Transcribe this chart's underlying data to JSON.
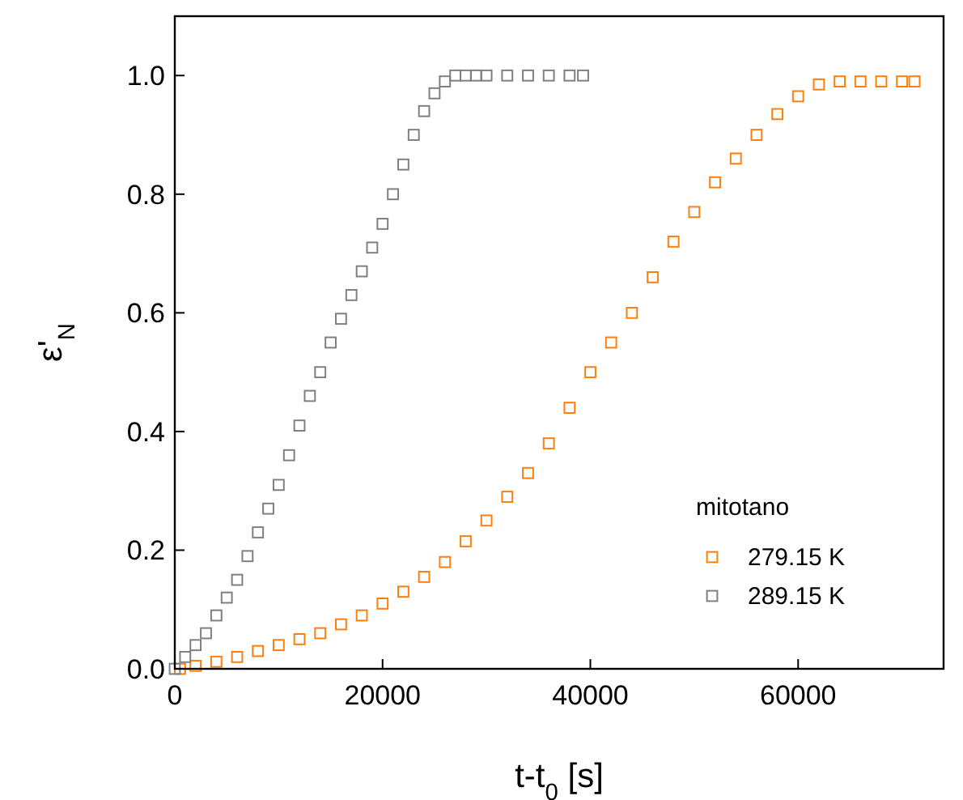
{
  "chart_data": {
    "type": "scatter",
    "xlabel": "t-t$_{0}$ [s]",
    "ylabel": "ε'$_{N}$",
    "legend_title": "mitotano",
    "legend": "bottom right",
    "marker": "square",
    "xlim": [
      0,
      74000
    ],
    "ylim": [
      0,
      1.1
    ],
    "xticks": [
      0,
      20000,
      40000,
      60000
    ],
    "yticks": [
      {
        "value": 0,
        "label": "0.0"
      },
      {
        "value": 0.2,
        "label": "0.2"
      },
      {
        "value": 0.4,
        "label": "0.4"
      },
      {
        "value": 0.6,
        "label": "0.6"
      },
      {
        "value": 0.8,
        "label": "0.8"
      },
      {
        "value": 1,
        "label": "1.0"
      }
    ],
    "series": [
      {
        "name": "279.15 K",
        "color": "#ff7f0e",
        "x": [
          500,
          2000,
          4000,
          6000,
          8000,
          10000,
          12000,
          14000,
          16000,
          18000,
          20000,
          22000,
          24000,
          26000,
          28000,
          30000,
          32000,
          34000,
          36000,
          38000,
          40000,
          42000,
          44000,
          46000,
          48000,
          50000,
          52000,
          54000,
          56000,
          58000,
          60000,
          62000,
          64000,
          66000,
          68000,
          70000,
          71200
        ],
        "values": [
          0,
          0.005,
          0.012,
          0.02,
          0.03,
          0.04,
          0.05,
          0.06,
          0.075,
          0.09,
          0.11,
          0.13,
          0.155,
          0.18,
          0.215,
          0.25,
          0.29,
          0.33,
          0.38,
          0.44,
          0.5,
          0.55,
          0.6,
          0.66,
          0.72,
          0.77,
          0.82,
          0.86,
          0.9,
          0.935,
          0.965,
          0.985,
          0.99,
          0.99,
          0.99,
          0.99,
          0.99
        ]
      },
      {
        "name": "289.15 K",
        "color": "#808080",
        "x": [
          0,
          1000,
          2000,
          3000,
          4000,
          5000,
          6000,
          7000,
          8000,
          9000,
          10000,
          11000,
          12000,
          13000,
          14000,
          15000,
          16000,
          17000,
          18000,
          19000,
          20000,
          21000,
          22000,
          23000,
          24000,
          25000,
          26000,
          27000,
          28000,
          29000,
          30000,
          32000,
          34000,
          36000,
          38000,
          39300
        ],
        "values": [
          0,
          0.02,
          0.04,
          0.06,
          0.09,
          0.12,
          0.15,
          0.19,
          0.23,
          0.27,
          0.31,
          0.36,
          0.41,
          0.46,
          0.5,
          0.55,
          0.59,
          0.63,
          0.67,
          0.71,
          0.75,
          0.8,
          0.85,
          0.9,
          0.94,
          0.97,
          0.99,
          1,
          1,
          1,
          1,
          1,
          1,
          1,
          1,
          1
        ]
      }
    ]
  }
}
